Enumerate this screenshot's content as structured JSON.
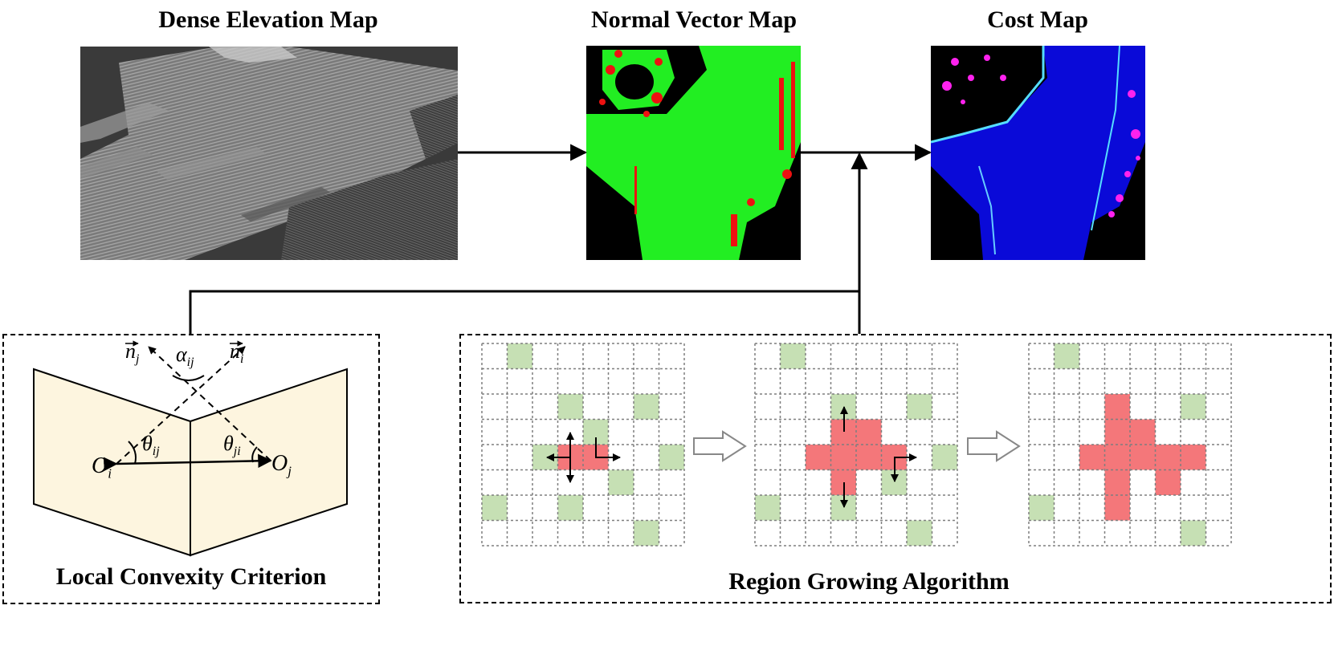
{
  "titles": {
    "elevation": "Dense Elevation Map",
    "normal": "Normal Vector Map",
    "cost": "Cost Map",
    "convexity": "Local Convexity Criterion",
    "region": "Region Growing Algorithm"
  },
  "convexity_labels": {
    "n_j_base": "n",
    "n_j_sub": "j",
    "n_i_base": "n",
    "n_i_sub": "i",
    "alpha_base": "α",
    "alpha_sub": "ij",
    "theta_ij_base": "θ",
    "theta_ij_sub": "ij",
    "theta_ji_base": "θ",
    "theta_ji_sub": "ji",
    "o_i_base": "O",
    "o_i_sub": "i",
    "o_j_base": "O",
    "o_j_sub": "j"
  },
  "colors": {
    "seed_red": "#f4777a",
    "candidate_green": "#c6e0b4",
    "panel_fill": "#fdf5df",
    "normal_green": "#22ee22",
    "normal_red": "#ee1111",
    "cost_blue": "#0a0ad8",
    "cost_magenta": "#ff22ee"
  },
  "grids": [
    {
      "green": [
        [
          0,
          1
        ],
        [
          2,
          3
        ],
        [
          2,
          6
        ],
        [
          3,
          4
        ],
        [
          4,
          2
        ],
        [
          4,
          7
        ],
        [
          5,
          5
        ],
        [
          6,
          0
        ],
        [
          6,
          3
        ],
        [
          7,
          6
        ]
      ],
      "red": [
        [
          4,
          3
        ],
        [
          4,
          4
        ]
      ]
    },
    {
      "green": [
        [
          0,
          1
        ],
        [
          2,
          3
        ],
        [
          2,
          6
        ],
        [
          3,
          4
        ],
        [
          4,
          7
        ],
        [
          5,
          5
        ],
        [
          6,
          0
        ],
        [
          6,
          3
        ],
        [
          7,
          6
        ]
      ],
      "red": [
        [
          3,
          3
        ],
        [
          3,
          4
        ],
        [
          4,
          2
        ],
        [
          4,
          3
        ],
        [
          4,
          4
        ],
        [
          4,
          5
        ],
        [
          5,
          3
        ]
      ]
    },
    {
      "green": [
        [
          0,
          1
        ],
        [
          2,
          6
        ],
        [
          6,
          0
        ],
        [
          7,
          6
        ]
      ],
      "red": [
        [
          2,
          3
        ],
        [
          3,
          3
        ],
        [
          3,
          4
        ],
        [
          4,
          2
        ],
        [
          4,
          3
        ],
        [
          4,
          4
        ],
        [
          4,
          5
        ],
        [
          4,
          6
        ],
        [
          5,
          3
        ],
        [
          5,
          5
        ],
        [
          6,
          3
        ]
      ]
    }
  ]
}
